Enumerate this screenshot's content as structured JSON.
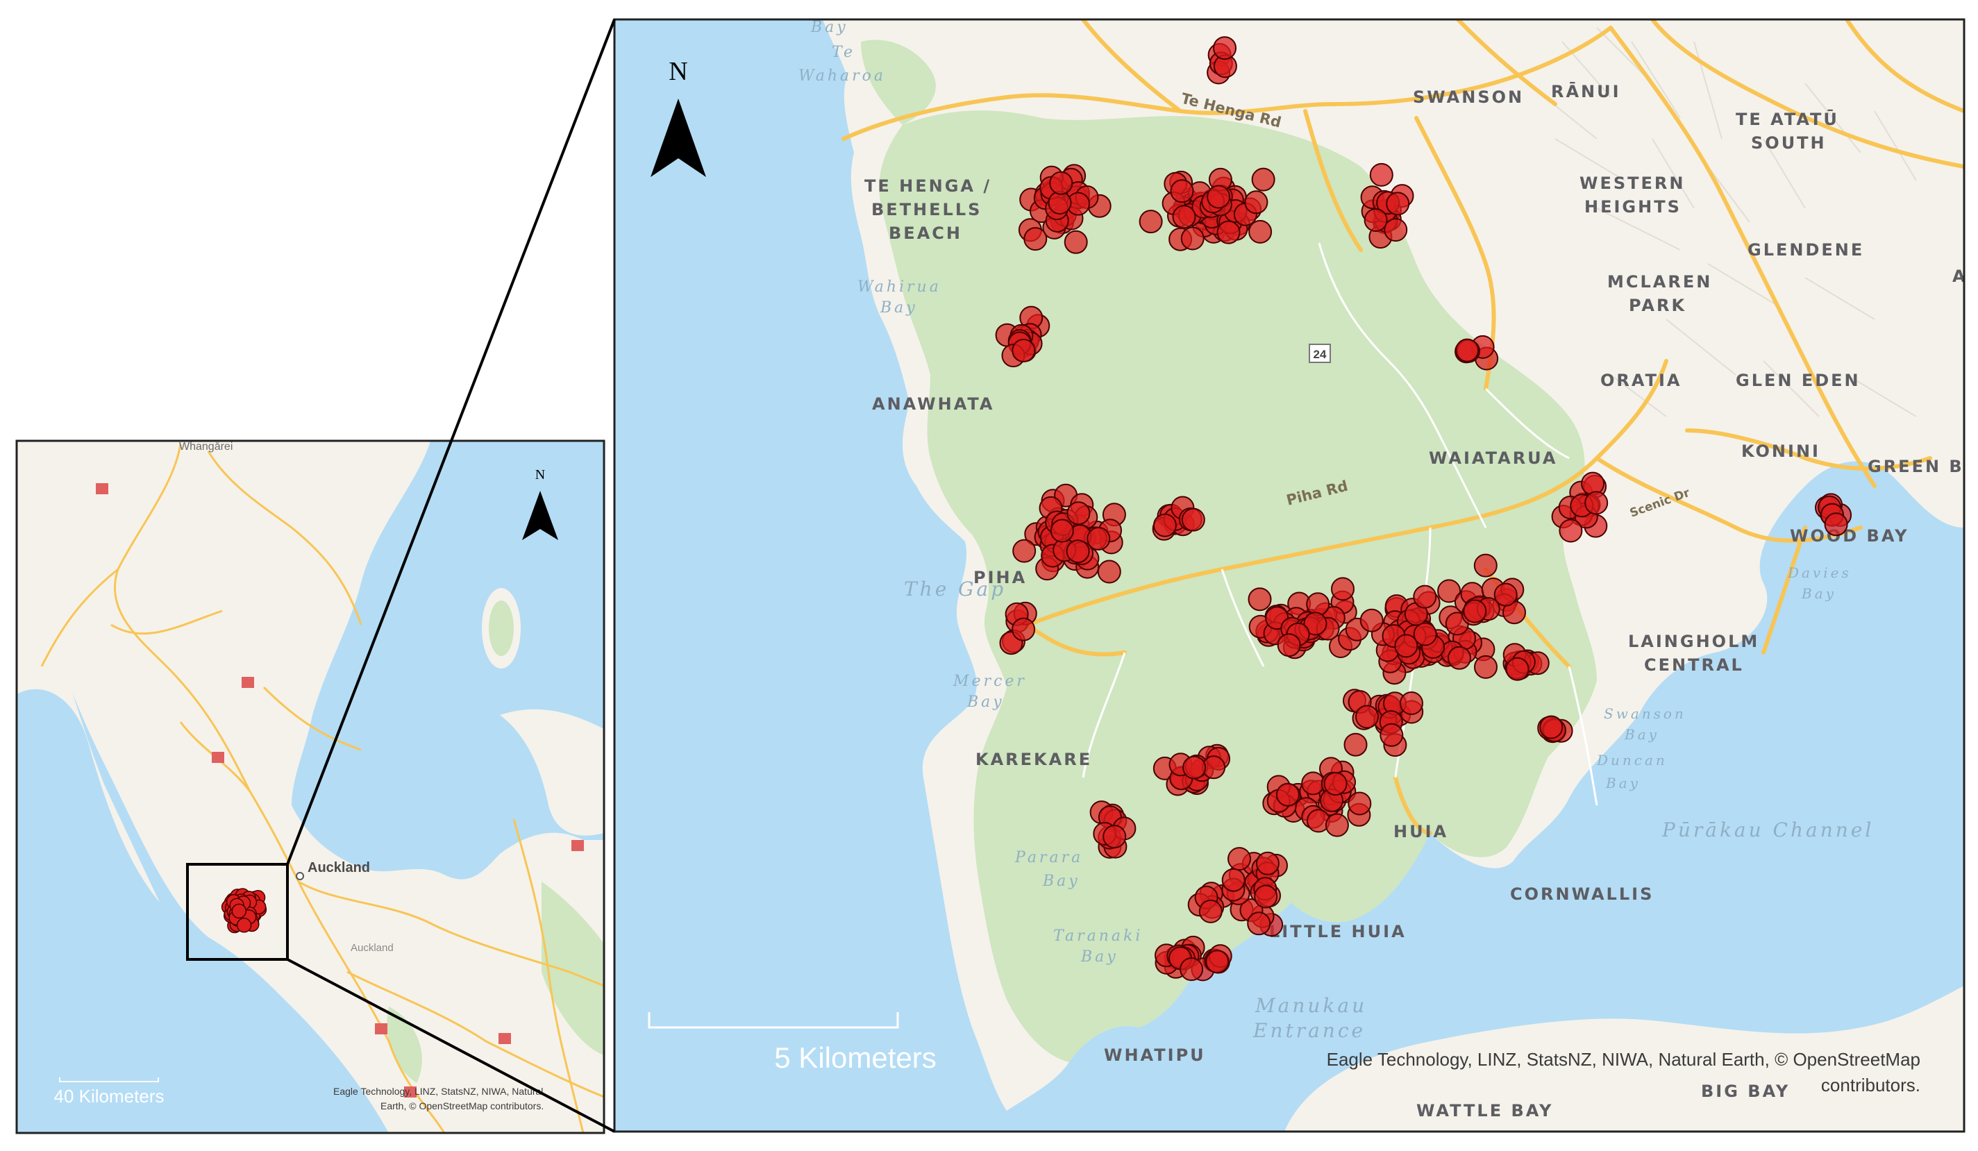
{
  "inset": {
    "labels": {
      "whangarei": "Whangārei",
      "auckland": "Auckland",
      "auckland_region": "Auckland"
    },
    "north": "N",
    "scale": "40 Kilometers",
    "attribution_1": "Eagle Technology, LINZ, StatsNZ, NIWA, Natural",
    "attribution_2": "Earth,  © OpenStreetMap contributors."
  },
  "main": {
    "north": "N",
    "scale": "5 Kilometers",
    "attribution_1": "Eagle Technology, LINZ, StatsNZ, NIWA, Natural Earth,  © OpenStreetMap",
    "attribution_2": "contributors.",
    "places": {
      "swanson": "SWANSON",
      "ranui": "RĀNUI",
      "te_atatu_1": "TE ATATŪ",
      "te_atatu_2": "SOUTH",
      "te_henga_1": "TE HENGA /",
      "te_henga_2": "BETHELLS",
      "te_henga_3": "BEACH",
      "western_1": "WESTERN",
      "western_2": "HEIGHTS",
      "glendene": "GLENDENE",
      "mclaren_1": "MCLAREN",
      "mclaren_2": "PARK",
      "oratia": "ORATIA",
      "glen_eden": "GLEN EDEN",
      "anawhata": "ANAWHATA",
      "waiatarua": "WAIATARUA",
      "konini": "KONINI",
      "green_bay": "GREEN B",
      "piha": "PIHA",
      "wood_bay": "WOOD BAY",
      "laingholm_1": "LAINGHOLM",
      "laingholm_2": "CENTRAL",
      "karekare": "KAREKARE",
      "huia": "HUIA",
      "cornwallis": "CORNWALLIS",
      "little_huia": "LITTLE HUIA",
      "whatipu": "WHATIPU",
      "big_bay": "BIG BAY",
      "wattle_bay": "WATTLE BAY",
      "edge_a": "A"
    },
    "water": {
      "bay_top": "Bay",
      "te_waharoa_1": "Te",
      "te_waharoa_2": "Waharoa",
      "wahirua_1": "Wahirua",
      "wahirua_2": "Bay",
      "the_gap": "The Gap",
      "mercer_1": "Mercer",
      "mercer_2": "Bay",
      "davies_1": "Davies",
      "davies_2": "Bay",
      "swanson_bay_1": "Swanson",
      "swanson_bay_2": "Bay",
      "duncan_1": "Duncan",
      "duncan_2": "Bay",
      "purakau": "Pūrākau Channel",
      "parara_1": "Parara",
      "parara_2": "Bay",
      "taranaki_1": "Taranaki",
      "taranaki_2": "Bay",
      "manukau_1": "Manukau",
      "manukau_2": "Entrance"
    },
    "roads": {
      "te_henga_rd": "Te Henga Rd",
      "piha_rd": "Piha Rd",
      "scenic_dr": "Scenic Dr",
      "route_24": "24"
    }
  },
  "colors": {
    "sea": "#b4dcf5",
    "land": "#f5f2eb",
    "park": "#cfe6c0",
    "road": "#f8c555",
    "point": "#dc1e1e"
  }
}
